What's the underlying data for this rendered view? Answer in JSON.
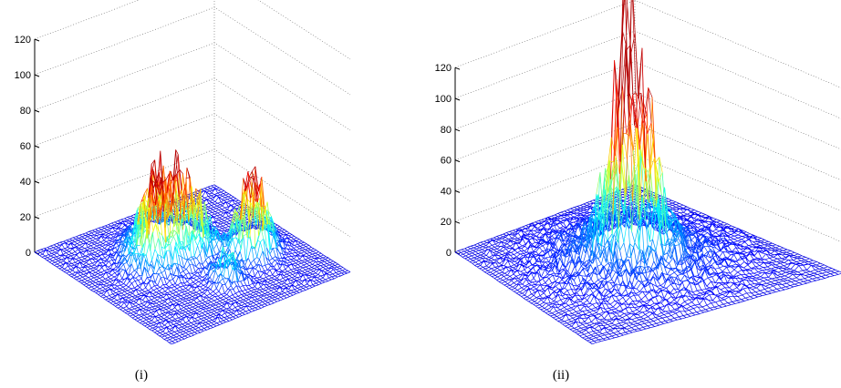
{
  "chart_data": [
    {
      "type": "surface",
      "caption": "(i)",
      "zlim": [
        0,
        120
      ],
      "z_ticks": [
        "0",
        "20",
        "40",
        "60",
        "80",
        "100",
        "120"
      ],
      "grid": true,
      "colormap": "jet",
      "peak_height": 42,
      "peaks": [
        {
          "u": 0.32,
          "v": 0.48,
          "height": 38,
          "spread": 0.09
        },
        {
          "u": 0.42,
          "v": 0.36,
          "height": 30,
          "spread": 0.08
        },
        {
          "u": 0.45,
          "v": 0.56,
          "height": 22,
          "spread": 0.07
        },
        {
          "u": 0.62,
          "v": 0.74,
          "height": 42,
          "spread": 0.06
        },
        {
          "u": 0.54,
          "v": 0.82,
          "height": 26,
          "spread": 0.05
        },
        {
          "u": 0.72,
          "v": 0.52,
          "height": 18,
          "spread": 0.05
        }
      ]
    },
    {
      "type": "surface",
      "caption": "(ii)",
      "zlim": [
        0,
        120
      ],
      "z_ticks": [
        "0",
        "20",
        "40",
        "60",
        "80",
        "100",
        "120"
      ],
      "grid": true,
      "colormap": "jet",
      "peak_height": 103,
      "peaks": [
        {
          "u": 0.5,
          "v": 0.5,
          "height": 103,
          "spread": 0.035
        },
        {
          "u": 0.47,
          "v": 0.46,
          "height": 60,
          "spread": 0.05
        },
        {
          "u": 0.55,
          "v": 0.54,
          "height": 55,
          "spread": 0.05
        },
        {
          "u": 0.45,
          "v": 0.56,
          "height": 45,
          "spread": 0.06
        },
        {
          "u": 0.5,
          "v": 0.5,
          "height": 22,
          "spread": 0.2
        }
      ]
    }
  ]
}
